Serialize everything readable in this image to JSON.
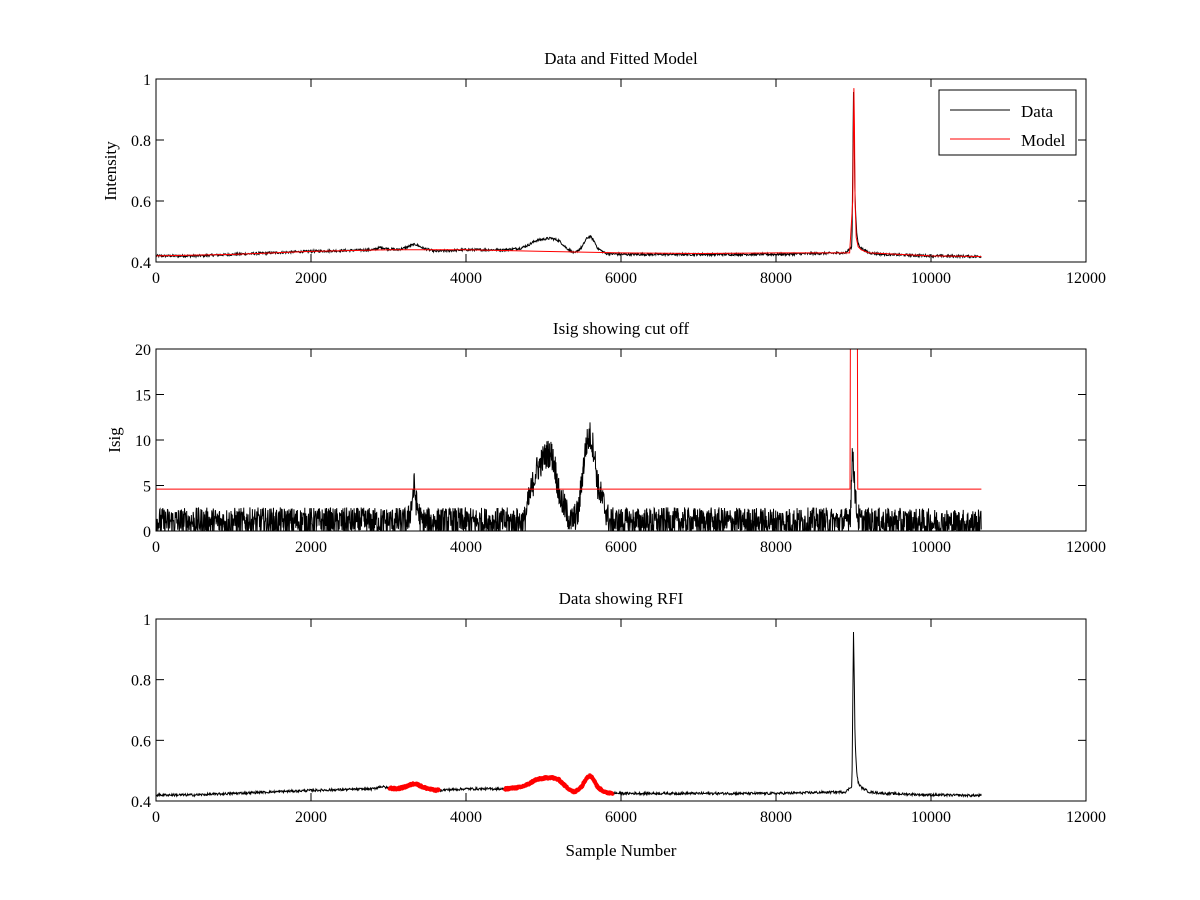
{
  "colors": {
    "data": "#000000",
    "model": "#ff0000",
    "rfi": "#ff0000",
    "background": "#ffffff"
  },
  "chart_data": [
    {
      "type": "line",
      "title": "Data and Fitted Model",
      "xlabel": "",
      "ylabel": "Intensity",
      "xlim": [
        0,
        12000
      ],
      "ylim": [
        0.4,
        1.0
      ],
      "xticks": [
        0,
        2000,
        4000,
        6000,
        8000,
        10000,
        12000
      ],
      "yticks": [
        0.4,
        0.6,
        0.8,
        1.0
      ],
      "xtick_labels": [
        "0",
        "2000",
        "4000",
        "6000",
        "8000",
        "10000",
        "12000"
      ],
      "ytick_labels": [
        "0.4",
        "0.6",
        "0.8",
        "1"
      ],
      "legend": {
        "location": "top-right",
        "entries": [
          "Data",
          "Model"
        ]
      },
      "series": [
        {
          "name": "Data",
          "color": "#000000",
          "noise": 0.004,
          "x": [
            0,
            500,
            1000,
            1500,
            2000,
            2500,
            2800,
            2900,
            3000,
            3100,
            3200,
            3300,
            3350,
            3450,
            3600,
            4000,
            4500,
            4700,
            4800,
            4900,
            5000,
            5100,
            5200,
            5300,
            5400,
            5500,
            5550,
            5600,
            5650,
            5700,
            5800,
            6000,
            7000,
            8000,
            8900,
            8980,
            9000,
            9010,
            9020,
            9040,
            9060,
            9100,
            9200,
            9400,
            10000,
            10650
          ],
          "y": [
            0.42,
            0.42,
            0.425,
            0.43,
            0.435,
            0.438,
            0.44,
            0.448,
            0.443,
            0.44,
            0.445,
            0.455,
            0.458,
            0.445,
            0.435,
            0.44,
            0.44,
            0.445,
            0.455,
            0.47,
            0.475,
            0.478,
            0.47,
            0.445,
            0.428,
            0.45,
            0.475,
            0.485,
            0.47,
            0.445,
            0.428,
            0.425,
            0.425,
            0.425,
            0.43,
            0.45,
            0.96,
            0.8,
            0.6,
            0.5,
            0.46,
            0.445,
            0.43,
            0.425,
            0.42,
            0.418
          ]
        },
        {
          "name": "Model",
          "color": "#ff0000",
          "noise": 0,
          "x": [
            0,
            1000,
            2000,
            3000,
            4000,
            5000,
            6000,
            7000,
            8000,
            8950,
            8990,
            9005,
            9012,
            9020,
            9035,
            9060,
            9100,
            9200,
            10000,
            10650
          ],
          "y": [
            0.42,
            0.425,
            0.435,
            0.44,
            0.44,
            0.435,
            0.43,
            0.428,
            0.43,
            0.43,
            0.6,
            0.97,
            0.85,
            0.6,
            0.48,
            0.45,
            0.44,
            0.43,
            0.42,
            0.418
          ]
        }
      ]
    },
    {
      "type": "line",
      "title": "Isig showing cut off",
      "xlabel": "",
      "ylabel": "Isig",
      "xlim": [
        0,
        12000
      ],
      "ylim": [
        0,
        20
      ],
      "xticks": [
        0,
        2000,
        4000,
        6000,
        8000,
        10000,
        12000
      ],
      "yticks": [
        0,
        5,
        10,
        15,
        20
      ],
      "xtick_labels": [
        "0",
        "2000",
        "4000",
        "6000",
        "8000",
        "10000",
        "12000"
      ],
      "ytick_labels": [
        "0",
        "5",
        "10",
        "15",
        "20"
      ],
      "series": [
        {
          "name": "Isig",
          "color": "#000000",
          "noise": 1.6,
          "noise_mode": "positive",
          "x": [
            0,
            3250,
            3300,
            3330,
            3360,
            3420,
            4000,
            4750,
            4800,
            4900,
            5000,
            5050,
            5100,
            5150,
            5200,
            5350,
            5450,
            5500,
            5550,
            5600,
            5650,
            5700,
            5850,
            8900,
            8960,
            8990,
            9010,
            9030,
            9060,
            9100,
            10650
          ],
          "y": [
            1.0,
            1.0,
            3.0,
            5.0,
            3.0,
            1.0,
            1.0,
            1.0,
            3.0,
            6.5,
            8.0,
            8.5,
            8.5,
            7.0,
            4.0,
            1.0,
            2.0,
            6.0,
            9.5,
            10.5,
            9.0,
            5.0,
            1.0,
            1.0,
            2.0,
            9.0,
            6.0,
            3.0,
            1.5,
            1.0,
            0.8
          ]
        },
        {
          "name": "Cut off",
          "color": "#ff0000",
          "noise": 0,
          "x": [
            0,
            8950,
            8955,
            8960,
            9050,
            9055,
            9060,
            10650
          ],
          "y": [
            4.6,
            4.6,
            4.6,
            22,
            22,
            4.6,
            4.6,
            4.6
          ]
        }
      ]
    },
    {
      "type": "line",
      "title": "Data showing RFI",
      "xlabel": "Sample Number",
      "ylabel": "",
      "xlim": [
        0,
        12000
      ],
      "ylim": [
        0.4,
        1.0
      ],
      "xticks": [
        0,
        2000,
        4000,
        6000,
        8000,
        10000,
        12000
      ],
      "yticks": [
        0.4,
        0.6,
        0.8,
        1.0
      ],
      "xtick_labels": [
        "0",
        "2000",
        "4000",
        "6000",
        "8000",
        "10000",
        "12000"
      ],
      "ytick_labels": [
        "0.4",
        "0.6",
        "0.8",
        "1"
      ],
      "series": [
        {
          "name": "Data",
          "color": "#000000",
          "noise": 0.004,
          "x": [
            0,
            500,
            1000,
            1500,
            2000,
            2500,
            2800,
            2900,
            3000,
            3100,
            3200,
            3300,
            3350,
            3450,
            3600,
            4000,
            4500,
            4700,
            4800,
            4900,
            5000,
            5100,
            5200,
            5300,
            5400,
            5500,
            5550,
            5600,
            5650,
            5700,
            5800,
            6000,
            7000,
            8000,
            8900,
            8980,
            9000,
            9010,
            9020,
            9040,
            9060,
            9100,
            9200,
            9400,
            10000,
            10650
          ],
          "y": [
            0.42,
            0.42,
            0.425,
            0.43,
            0.435,
            0.438,
            0.44,
            0.448,
            0.443,
            0.44,
            0.445,
            0.455,
            0.458,
            0.445,
            0.435,
            0.44,
            0.44,
            0.445,
            0.455,
            0.47,
            0.475,
            0.478,
            0.47,
            0.445,
            0.428,
            0.45,
            0.475,
            0.485,
            0.47,
            0.445,
            0.428,
            0.425,
            0.425,
            0.425,
            0.43,
            0.45,
            0.96,
            0.8,
            0.6,
            0.5,
            0.46,
            0.445,
            0.43,
            0.425,
            0.42,
            0.418
          ]
        }
      ],
      "rfi_segments": [
        {
          "x_start": 3000,
          "x_end": 3650
        },
        {
          "x_start": 4500,
          "x_end": 5900
        }
      ]
    }
  ]
}
